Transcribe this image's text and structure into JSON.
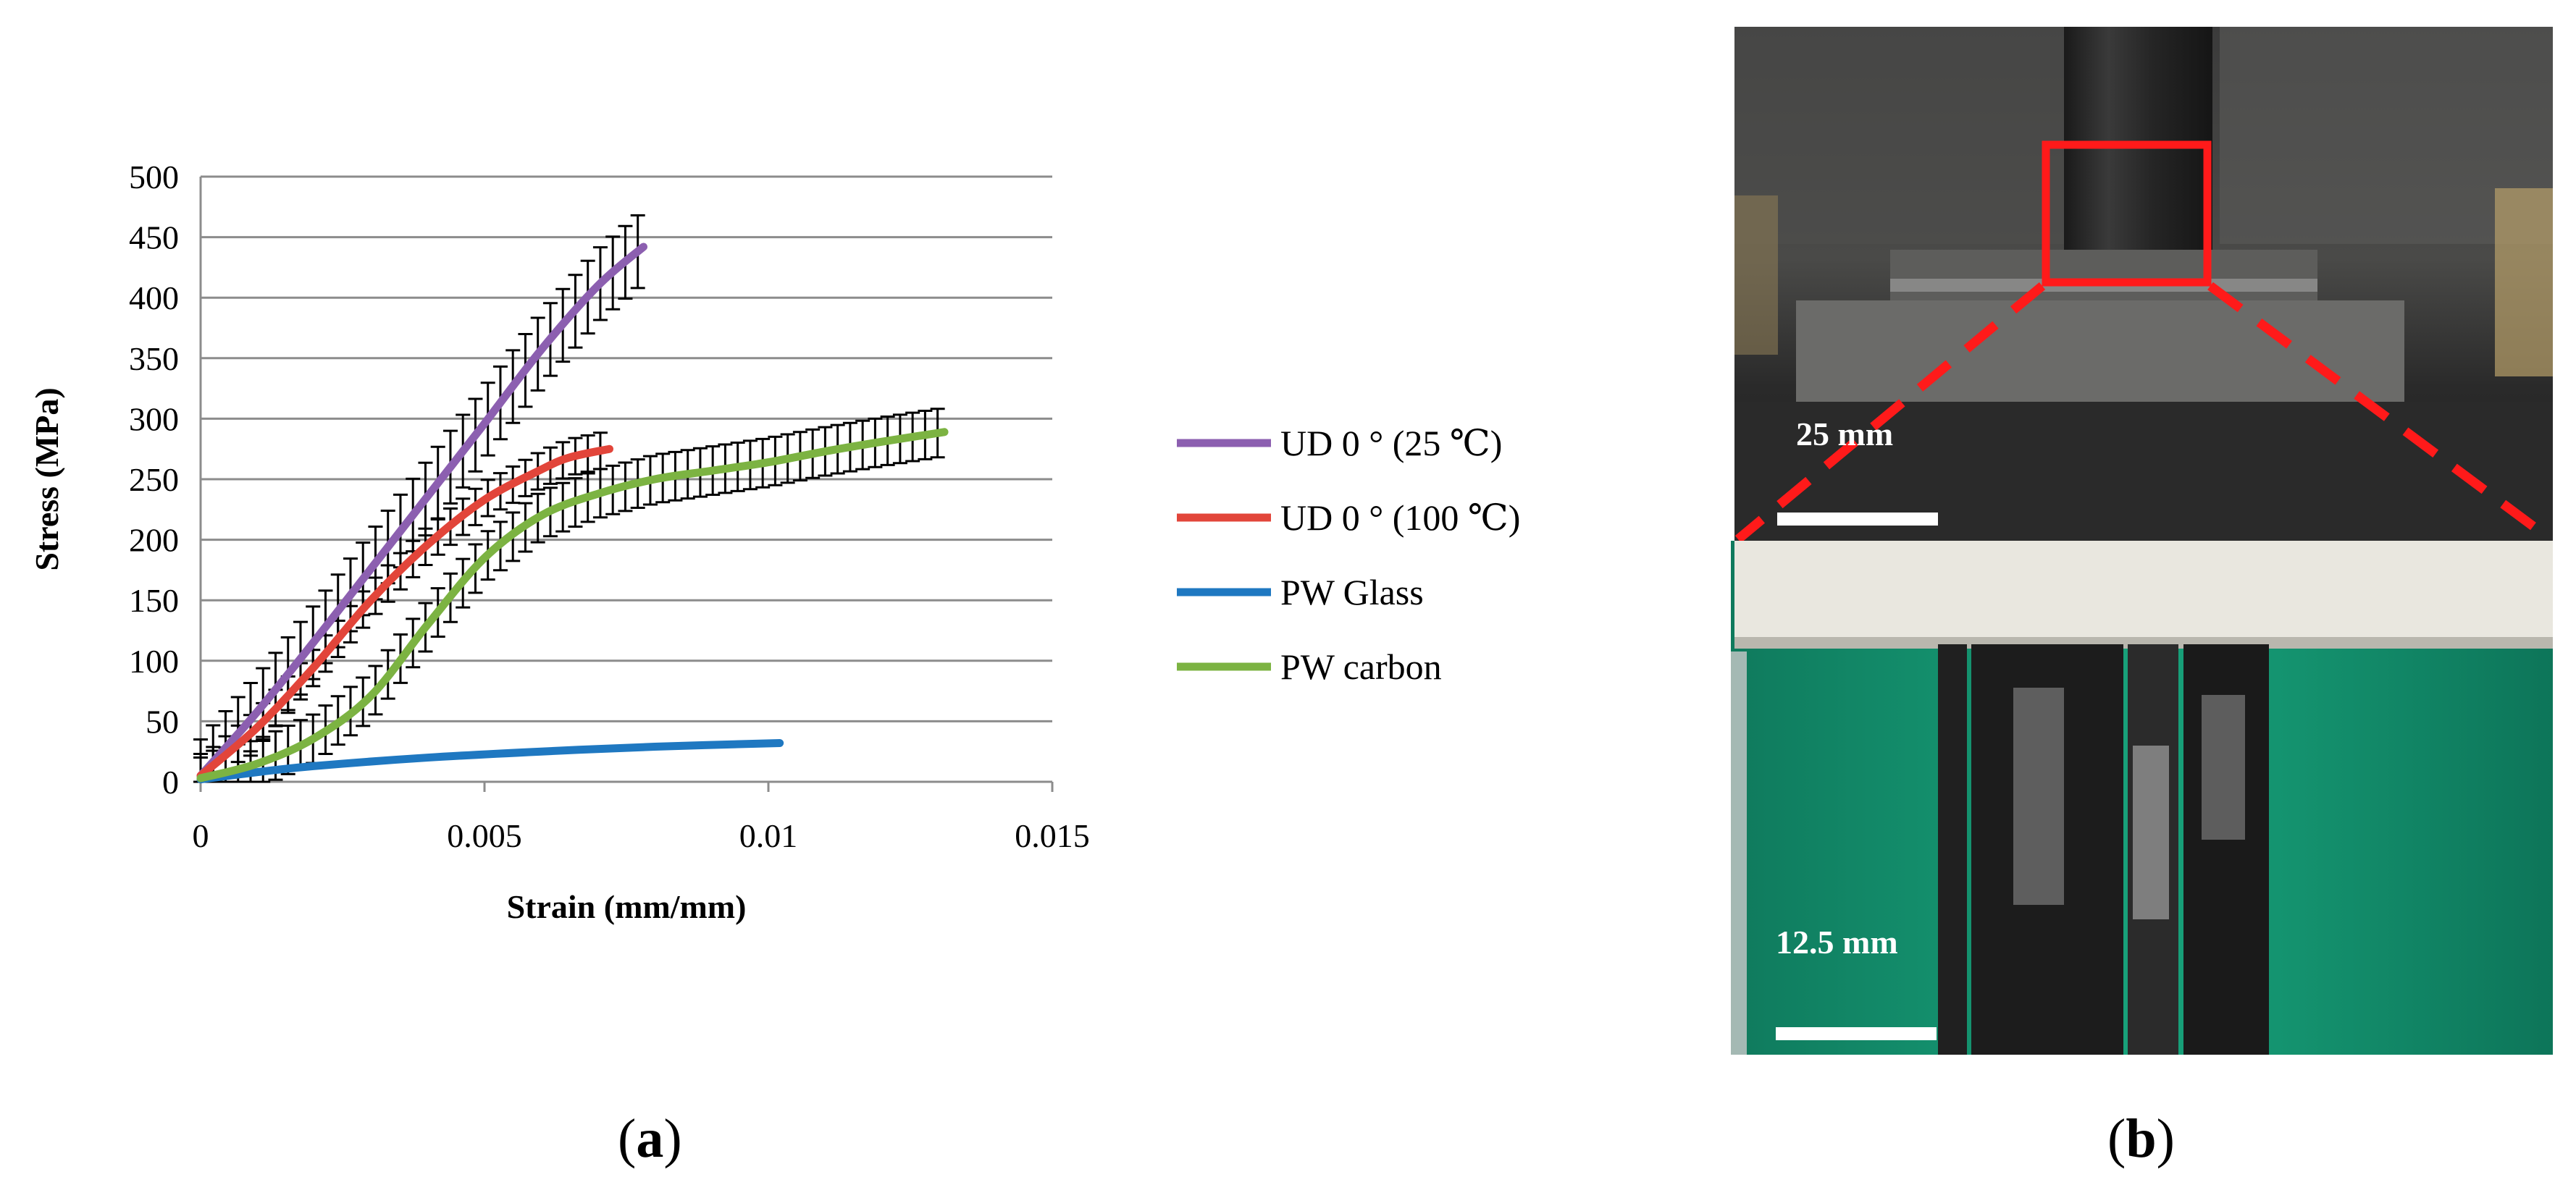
{
  "panels": {
    "a_label_open": "(",
    "a_label_letter": "a",
    "a_label_close": ")",
    "b_label_open": "(",
    "b_label_letter": "b",
    "b_label_close": ")"
  },
  "chart_data": {
    "type": "line",
    "title": "",
    "xlabel": "Strain (mm/mm)",
    "ylabel": "Stress (MPa)",
    "xlim": [
      0,
      0.015
    ],
    "ylim": [
      0,
      500
    ],
    "x_ticks": [
      "0",
      "0.005",
      "0.01",
      "0.015"
    ],
    "x_tick_values": [
      0,
      0.005,
      0.01,
      0.015
    ],
    "y_ticks": [
      "0",
      "50",
      "100",
      "150",
      "200",
      "250",
      "300",
      "350",
      "400",
      "450",
      "500"
    ],
    "y_tick_values": [
      0,
      50,
      100,
      150,
      200,
      250,
      300,
      350,
      400,
      450,
      500
    ],
    "grid": "horizontal",
    "legend_position": "right",
    "error_bars": true,
    "series": [
      {
        "name": "UD 0 ° (25 ℃)",
        "color": "#8c5fb0",
        "error": 30,
        "x": [
          0,
          0.001,
          0.002,
          0.003,
          0.004,
          0.005,
          0.006,
          0.007,
          0.0078
        ],
        "y": [
          5,
          58,
          116,
          176,
          236,
          296,
          357,
          410,
          442
        ]
      },
      {
        "name": "UD 0 ° (100 ℃)",
        "color": "#e2453a",
        "error": 15,
        "x": [
          0,
          0.001,
          0.002,
          0.003,
          0.004,
          0.005,
          0.006,
          0.0065,
          0.0072
        ],
        "y": [
          5,
          45,
          95,
          150,
          196,
          233,
          258,
          268,
          275
        ]
      },
      {
        "name": "PW Glass",
        "color": "#1f78c1",
        "error": 0,
        "x": [
          0,
          0.001,
          0.002,
          0.004,
          0.006,
          0.008,
          0.0102
        ],
        "y": [
          2,
          8,
          13,
          20,
          25,
          29,
          32
        ]
      },
      {
        "name": "PW carbon",
        "color": "#7cb342",
        "error": 20,
        "x": [
          0,
          0.001,
          0.002,
          0.003,
          0.004,
          0.005,
          0.006,
          0.007,
          0.008,
          0.009,
          0.01,
          0.011,
          0.012,
          0.0131
        ],
        "y": [
          3,
          15,
          36,
          71,
          130,
          185,
          220,
          238,
          250,
          257,
          264,
          273,
          281,
          289
        ]
      }
    ]
  },
  "photo_panel": {
    "top_scale_label": "25 mm",
    "bottom_scale_label": "12.5 mm"
  }
}
